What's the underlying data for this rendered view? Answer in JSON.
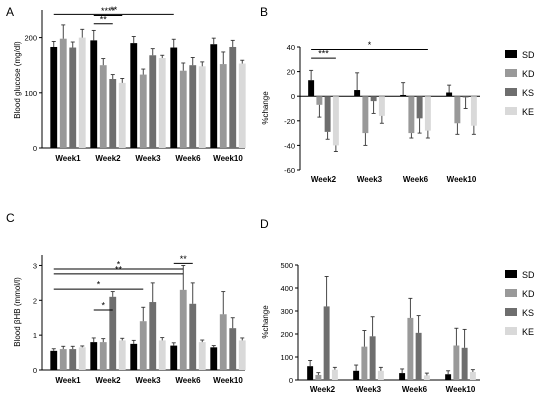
{
  "series_colors": {
    "SD": "#000000",
    "KD": "#999999",
    "KS": "#6e6e6e",
    "KE": "#d9d9d9"
  },
  "chart_data": [
    {
      "panel": "A",
      "type": "bar",
      "ylabel": "Blood glucose (mg/dl)",
      "ylim": [
        0,
        250
      ],
      "yticks": [
        0,
        100,
        200
      ],
      "categories": [
        "Week1",
        "Week2",
        "Week3",
        "Week6",
        "Week10"
      ],
      "series": [
        {
          "name": "SD",
          "values": [
            183,
            195,
            190,
            182,
            188
          ],
          "errors": [
            10,
            18,
            12,
            15,
            11
          ]
        },
        {
          "name": "KD",
          "values": [
            198,
            150,
            133,
            140,
            152
          ],
          "errors": [
            25,
            12,
            10,
            14,
            22
          ]
        },
        {
          "name": "KS",
          "values": [
            182,
            125,
            168,
            150,
            183
          ],
          "errors": [
            10,
            8,
            12,
            14,
            12
          ]
        },
        {
          "name": "KE",
          "values": [
            200,
            118,
            163,
            148,
            153
          ],
          "errors": [
            15,
            8,
            5,
            8,
            6
          ]
        }
      ],
      "annotations": [
        "****",
        "**",
        "**"
      ]
    },
    {
      "panel": "B",
      "type": "bar",
      "ylabel": "%change",
      "ylim": [
        -60,
        40
      ],
      "yticks": [
        -60,
        -40,
        -20,
        0,
        20,
        40
      ],
      "categories": [
        "Week2",
        "Week3",
        "Week6",
        "Week10"
      ],
      "series": [
        {
          "name": "SD",
          "values": [
            13,
            5,
            1,
            3
          ],
          "errors": [
            8,
            14,
            10,
            6
          ]
        },
        {
          "name": "KD",
          "values": [
            -7,
            -30,
            -30,
            -22
          ],
          "errors": [
            10,
            10,
            4,
            9
          ]
        },
        {
          "name": "KS",
          "values": [
            -29,
            -4,
            -18,
            -1
          ],
          "errors": [
            6,
            10,
            12,
            9
          ]
        },
        {
          "name": "KE",
          "values": [
            -40,
            -16,
            -28,
            -24
          ],
          "errors": [
            5,
            6,
            6,
            7
          ]
        }
      ],
      "annotations": [
        "***",
        "*"
      ]
    },
    {
      "panel": "C",
      "type": "bar",
      "ylabel": "Blood βHB (mmol/l)",
      "ylim": [
        0,
        3.3
      ],
      "yticks": [
        0,
        1,
        2,
        3
      ],
      "categories": [
        "Week1",
        "Week2",
        "Week3",
        "Week6",
        "Week10"
      ],
      "series": [
        {
          "name": "SD",
          "values": [
            0.55,
            0.8,
            0.75,
            0.7,
            0.65
          ],
          "errors": [
            0.06,
            0.12,
            0.1,
            0.08,
            0.05
          ]
        },
        {
          "name": "KD",
          "values": [
            0.6,
            0.8,
            1.4,
            2.3,
            1.6
          ],
          "errors": [
            0.08,
            0.1,
            0.4,
            0.7,
            0.65
          ]
        },
        {
          "name": "KS",
          "values": [
            0.6,
            2.1,
            1.95,
            1.9,
            1.2
          ],
          "errors": [
            0.08,
            0.15,
            0.55,
            0.6,
            0.3
          ]
        },
        {
          "name": "KE",
          "values": [
            0.65,
            0.85,
            0.85,
            0.8,
            0.85
          ],
          "errors": [
            0.04,
            0.06,
            0.08,
            0.06,
            0.07
          ]
        }
      ],
      "annotations": [
        "*",
        "*",
        "**",
        "*",
        "**"
      ]
    },
    {
      "panel": "D",
      "type": "bar",
      "ylabel": "%change",
      "ylim": [
        0,
        500
      ],
      "yticks": [
        0,
        100,
        200,
        300,
        400,
        500
      ],
      "categories": [
        "Week2",
        "Week3",
        "Week6",
        "Week10"
      ],
      "series": [
        {
          "name": "SD",
          "values": [
            60,
            40,
            30,
            25
          ],
          "errors": [
            25,
            25,
            18,
            15
          ]
        },
        {
          "name": "KD",
          "values": [
            22,
            145,
            270,
            150
          ],
          "errors": [
            10,
            70,
            85,
            75
          ]
        },
        {
          "name": "KS",
          "values": [
            320,
            190,
            205,
            140
          ],
          "errors": [
            130,
            85,
            75,
            80
          ]
        },
        {
          "name": "KE",
          "values": [
            45,
            40,
            20,
            35
          ],
          "errors": [
            10,
            15,
            10,
            10
          ]
        }
      ],
      "annotations": []
    }
  ]
}
